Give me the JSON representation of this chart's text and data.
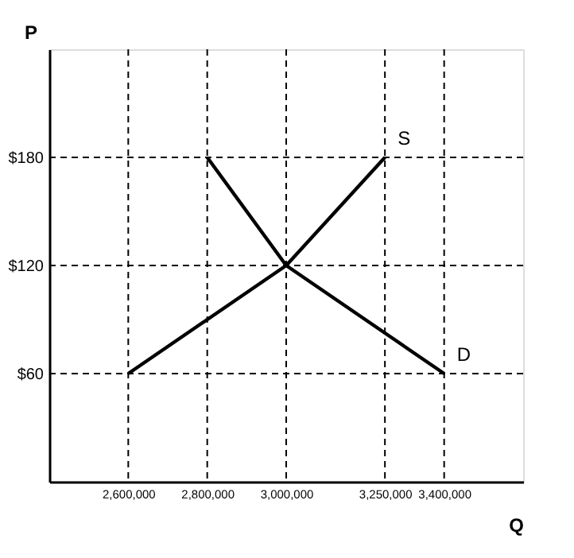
{
  "chart_data": {
    "type": "line",
    "xlabel": "Q",
    "ylabel": "P",
    "series": [
      {
        "name": "S",
        "color": "#000000",
        "x": [
          2600000,
          3000000,
          3250000
        ],
        "values": [
          60,
          120,
          180
        ]
      },
      {
        "name": "D",
        "color": "#000000",
        "x": [
          2800000,
          3000000,
          3400000
        ],
        "values": [
          180,
          120,
          60
        ]
      }
    ],
    "xlim": [
      2400000,
      3600000
    ],
    "ylim": [
      0,
      240
    ],
    "xticks": [
      {
        "value": 2600000,
        "label": "2,600,000"
      },
      {
        "value": 2800000,
        "label": "2,800,000"
      },
      {
        "value": 3000000,
        "label": "3,000,000"
      },
      {
        "value": 3250000,
        "label": "3,250,000"
      },
      {
        "value": 3400000,
        "label": "3,400,000"
      }
    ],
    "yticks": [
      {
        "value": 60,
        "label": "$60"
      },
      {
        "value": 120,
        "label": "$120"
      },
      {
        "value": 180,
        "label": "$180"
      }
    ],
    "ref_lines": [
      {
        "axis": "y",
        "value": 60,
        "line_style": "dashed",
        "color": "#000000"
      },
      {
        "axis": "y",
        "value": 120,
        "line_style": "dashed",
        "color": "#000000"
      },
      {
        "axis": "y",
        "value": 180,
        "line_style": "dashed",
        "color": "#000000"
      },
      {
        "axis": "x",
        "value": 2600000,
        "line_style": "dashed",
        "color": "#000000"
      },
      {
        "axis": "x",
        "value": 2800000,
        "line_style": "dashed",
        "color": "#000000"
      },
      {
        "axis": "x",
        "value": 3000000,
        "line_style": "dashed",
        "color": "#000000"
      },
      {
        "axis": "x",
        "value": 3250000,
        "line_style": "dashed",
        "color": "#000000"
      },
      {
        "axis": "x",
        "value": 3400000,
        "line_style": "dashed",
        "color": "#000000"
      }
    ],
    "grid": false,
    "marker": "none",
    "line_style": "solid"
  }
}
